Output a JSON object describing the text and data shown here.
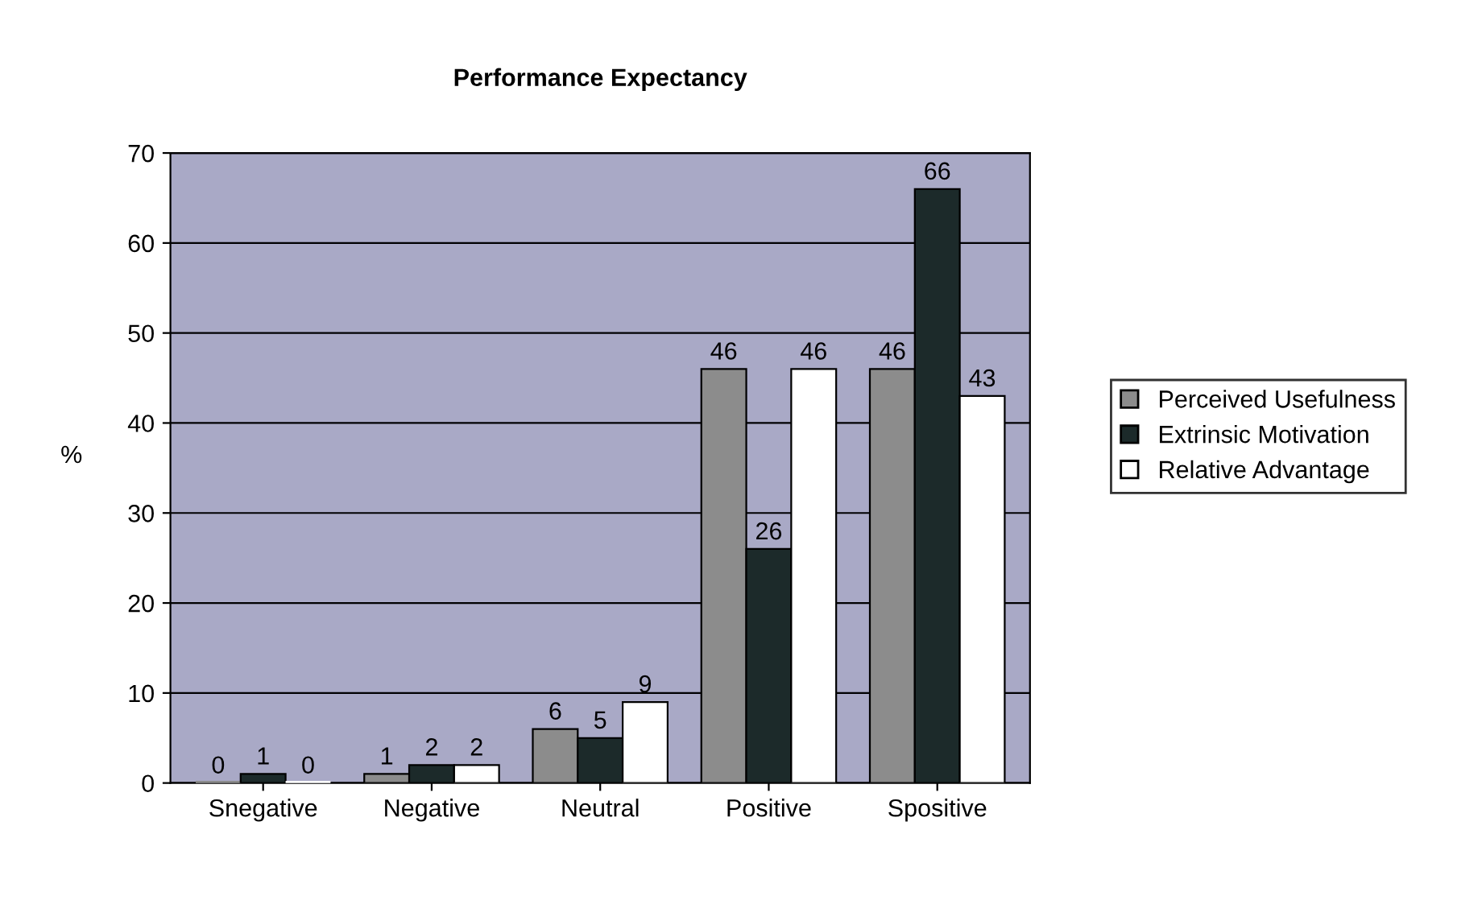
{
  "chart_data": {
    "type": "bar",
    "title": "Performance Expectancy",
    "ylabel": "%",
    "categories": [
      "Snegative",
      "Negative",
      "Neutral",
      "Positive",
      "Spositive"
    ],
    "series": [
      {
        "name": "Perceived Usefulness",
        "color": "#8c8c8c",
        "values": [
          0,
          1,
          6,
          46,
          46
        ]
      },
      {
        "name": "Extrinsic Motivation",
        "color": "#1c2a2a",
        "values": [
          1,
          2,
          5,
          26,
          66
        ]
      },
      {
        "name": "Relative Advantage",
        "color": "#ffffff",
        "values": [
          0,
          2,
          9,
          46,
          43
        ]
      }
    ],
    "ylim": [
      0,
      70
    ],
    "yticks": [
      0,
      10,
      20,
      30,
      40,
      50,
      60,
      70
    ],
    "grid": "y",
    "legend": "right",
    "data_labels": true
  }
}
